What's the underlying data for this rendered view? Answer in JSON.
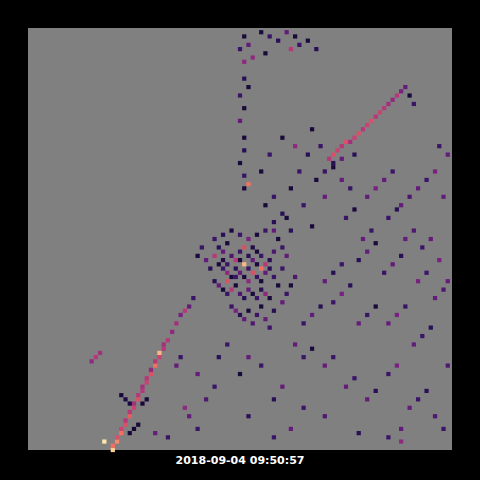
{
  "chart_data": {
    "type": "heatmap",
    "title": "2018-09-04 09:50:57",
    "xlim": [
      0,
      100
    ],
    "ylim": [
      0,
      100
    ],
    "tick_labels": false,
    "value_range": [
      0,
      1
    ],
    "cells": [
      [
        20,
        0,
        0.9
      ],
      [
        20,
        1,
        0.7
      ],
      [
        21,
        2,
        0.75
      ],
      [
        21,
        3,
        0.6
      ],
      [
        22,
        4,
        0.7
      ],
      [
        22,
        5,
        0.55
      ],
      [
        23,
        6,
        0.6
      ],
      [
        23,
        7,
        0.5
      ],
      [
        24,
        8,
        0.65
      ],
      [
        24,
        9,
        0.5
      ],
      [
        25,
        10,
        0.55
      ],
      [
        25,
        11,
        0.45
      ],
      [
        26,
        12,
        0.6
      ],
      [
        26,
        13,
        0.5
      ],
      [
        27,
        14,
        0.5
      ],
      [
        27,
        15,
        0.45
      ],
      [
        28,
        16,
        0.55
      ],
      [
        28,
        17,
        0.5
      ],
      [
        29,
        18,
        0.6
      ],
      [
        29,
        19,
        0.4
      ],
      [
        30,
        20,
        0.7
      ],
      [
        30,
        21,
        0.5
      ],
      [
        31,
        22,
        0.55
      ],
      [
        31,
        23,
        0.85
      ],
      [
        32,
        24,
        0.5
      ],
      [
        32,
        25,
        0.45
      ],
      [
        33,
        26,
        0.5
      ],
      [
        34,
        28,
        0.4
      ],
      [
        35,
        30,
        0.45
      ],
      [
        36,
        32,
        0.35
      ],
      [
        18,
        2,
        0.95
      ],
      [
        24,
        4,
        0.1
      ],
      [
        25,
        5,
        0.08
      ],
      [
        26,
        6,
        0.1
      ],
      [
        24,
        11,
        0.1
      ],
      [
        23,
        12,
        0.12
      ],
      [
        27,
        11,
        0.1
      ],
      [
        28,
        12,
        0.1
      ],
      [
        22,
        13,
        0.1
      ],
      [
        16,
        22,
        0.5
      ],
      [
        17,
        23,
        0.45
      ],
      [
        15,
        21,
        0.4
      ],
      [
        35,
        20,
        0.3
      ],
      [
        36,
        22,
        0.2
      ],
      [
        37,
        10,
        0.4
      ],
      [
        38,
        8,
        0.3
      ],
      [
        40,
        5,
        0.2
      ],
      [
        33,
        3,
        0.2
      ],
      [
        30,
        4,
        0.3
      ],
      [
        42,
        12,
        0.25
      ],
      [
        44,
        15,
        0.2
      ],
      [
        40,
        18,
        0.3
      ],
      [
        44,
        50,
        0.2
      ],
      [
        45,
        48,
        0.15
      ],
      [
        46,
        47,
        0.3
      ],
      [
        47,
        49,
        0.1
      ],
      [
        48,
        46,
        0.25
      ],
      [
        49,
        45,
        0.5
      ],
      [
        50,
        47,
        0.2
      ],
      [
        51,
        48,
        0.6
      ],
      [
        52,
        46,
        0.15
      ],
      [
        53,
        45,
        0.3
      ],
      [
        54,
        47,
        0.1
      ],
      [
        55,
        46,
        0.2
      ],
      [
        56,
        44,
        0.5
      ],
      [
        57,
        45,
        0.15
      ],
      [
        58,
        47,
        0.25
      ],
      [
        59,
        50,
        0.1
      ],
      [
        60,
        48,
        0.2
      ],
      [
        61,
        46,
        0.3
      ],
      [
        62,
        52,
        0.15
      ],
      [
        45,
        44,
        0.1
      ],
      [
        46,
        43,
        0.2
      ],
      [
        47,
        42,
        0.4
      ],
      [
        48,
        41,
        0.1
      ],
      [
        49,
        43,
        0.15
      ],
      [
        50,
        42,
        0.3
      ],
      [
        51,
        41,
        0.1
      ],
      [
        52,
        43,
        0.2
      ],
      [
        53,
        42,
        0.6
      ],
      [
        54,
        41,
        0.2
      ],
      [
        55,
        40,
        0.1
      ],
      [
        56,
        42,
        0.3
      ],
      [
        57,
        43,
        0.15
      ],
      [
        58,
        41,
        0.2
      ],
      [
        44,
        40,
        0.15
      ],
      [
        45,
        39,
        0.3
      ],
      [
        46,
        38,
        0.1
      ],
      [
        47,
        37,
        0.2
      ],
      [
        48,
        38,
        0.5
      ],
      [
        49,
        39,
        0.1
      ],
      [
        50,
        37,
        0.25
      ],
      [
        51,
        36,
        0.15
      ],
      [
        52,
        38,
        0.3
      ],
      [
        53,
        37,
        0.1
      ],
      [
        54,
        36,
        0.2
      ],
      [
        55,
        38,
        0.15
      ],
      [
        56,
        37,
        0.4
      ],
      [
        57,
        36,
        0.1
      ],
      [
        48,
        34,
        0.2
      ],
      [
        49,
        33,
        0.35
      ],
      [
        50,
        32,
        0.15
      ],
      [
        51,
        31,
        0.3
      ],
      [
        52,
        33,
        0.1
      ],
      [
        53,
        30,
        0.25
      ],
      [
        54,
        32,
        0.2
      ],
      [
        55,
        34,
        0.1
      ],
      [
        56,
        31,
        0.3
      ],
      [
        57,
        29,
        0.2
      ],
      [
        58,
        33,
        0.15
      ],
      [
        60,
        35,
        0.3
      ],
      [
        61,
        37,
        0.2
      ],
      [
        62,
        39,
        0.1
      ],
      [
        63,
        41,
        0.25
      ],
      [
        60,
        43,
        0.2
      ],
      [
        59,
        39,
        0.1
      ],
      [
        42,
        45,
        0.3
      ],
      [
        43,
        43,
        0.15
      ],
      [
        44,
        46,
        0.5
      ],
      [
        46,
        51,
        0.15
      ],
      [
        48,
        52,
        0.1
      ],
      [
        50,
        51,
        0.2
      ],
      [
        52,
        50,
        0.35
      ],
      [
        54,
        51,
        0.1
      ],
      [
        56,
        52,
        0.2
      ],
      [
        58,
        54,
        0.15
      ],
      [
        51,
        44,
        0.85
      ],
      [
        55,
        43,
        0.7
      ],
      [
        47,
        40,
        0.6
      ],
      [
        52,
        40,
        0.4
      ],
      [
        46,
        45,
        0.12
      ],
      [
        50,
        45,
        0.1
      ],
      [
        53,
        48,
        0.12
      ],
      [
        49,
        41,
        0.2
      ],
      [
        54,
        44,
        0.1
      ],
      [
        47,
        44,
        0.2
      ],
      [
        51,
        62,
        0.1
      ],
      [
        51,
        65,
        0.2
      ],
      [
        50,
        68,
        0.1
      ],
      [
        51,
        71,
        0.15
      ],
      [
        51,
        74,
        0.1
      ],
      [
        50,
        78,
        0.3
      ],
      [
        51,
        81,
        0.1
      ],
      [
        50,
        84,
        0.2
      ],
      [
        51,
        88,
        0.15
      ],
      [
        51,
        92,
        0.4
      ],
      [
        50,
        95,
        0.2
      ],
      [
        51,
        98,
        0.1
      ],
      [
        52,
        86,
        0.1
      ],
      [
        52,
        96,
        0.3
      ],
      [
        52,
        63,
        0.7
      ],
      [
        55,
        99,
        0.1
      ],
      [
        57,
        98,
        0.2
      ],
      [
        59,
        97,
        0.15
      ],
      [
        61,
        99,
        0.3
      ],
      [
        63,
        98,
        0.1
      ],
      [
        64,
        96,
        0.2
      ],
      [
        62,
        95,
        0.5
      ],
      [
        66,
        97,
        0.1
      ],
      [
        68,
        95,
        0.15
      ],
      [
        53,
        93,
        0.4
      ],
      [
        56,
        94,
        0.1
      ],
      [
        56,
        58,
        0.1
      ],
      [
        58,
        60,
        0.2
      ],
      [
        60,
        56,
        0.15
      ],
      [
        62,
        62,
        0.1
      ],
      [
        64,
        66,
        0.2
      ],
      [
        66,
        70,
        0.15
      ],
      [
        68,
        64,
        0.1
      ],
      [
        70,
        60,
        0.3
      ],
      [
        55,
        66,
        0.1
      ],
      [
        57,
        70,
        0.2
      ],
      [
        60,
        74,
        0.1
      ],
      [
        63,
        72,
        0.4
      ],
      [
        67,
        76,
        0.1
      ],
      [
        69,
        72,
        0.2
      ],
      [
        72,
        68,
        0.15
      ],
      [
        74,
        64,
        0.3
      ],
      [
        76,
        62,
        0.2
      ],
      [
        58,
        52,
        0.3
      ],
      [
        61,
        55,
        0.1
      ],
      [
        65,
        58,
        0.2
      ],
      [
        67,
        53,
        0.1
      ],
      [
        71,
        69,
        0.5
      ],
      [
        72,
        70,
        0.6
      ],
      [
        73,
        71,
        0.55
      ],
      [
        74,
        72,
        0.5
      ],
      [
        75,
        73,
        0.6
      ],
      [
        76,
        73,
        0.45
      ],
      [
        77,
        74,
        0.55
      ],
      [
        78,
        75,
        0.6
      ],
      [
        79,
        76,
        0.5
      ],
      [
        80,
        77,
        0.55
      ],
      [
        81,
        78,
        0.6
      ],
      [
        82,
        79,
        0.5
      ],
      [
        83,
        80,
        0.55
      ],
      [
        84,
        81,
        0.5
      ],
      [
        85,
        82,
        0.45
      ],
      [
        86,
        83,
        0.4
      ],
      [
        87,
        84,
        0.5
      ],
      [
        88,
        85,
        0.35
      ],
      [
        89,
        86,
        0.3
      ],
      [
        90,
        84,
        0.1
      ],
      [
        91,
        82,
        0.2
      ],
      [
        70,
        66,
        0.2
      ],
      [
        72,
        67,
        0.1
      ],
      [
        74,
        69,
        0.3
      ],
      [
        77,
        70,
        0.15
      ],
      [
        80,
        60,
        0.3
      ],
      [
        82,
        62,
        0.35
      ],
      [
        84,
        64,
        0.3
      ],
      [
        86,
        66,
        0.2
      ],
      [
        88,
        58,
        0.3
      ],
      [
        90,
        60,
        0.25
      ],
      [
        92,
        62,
        0.3
      ],
      [
        94,
        64,
        0.2
      ],
      [
        96,
        66,
        0.35
      ],
      [
        98,
        60,
        0.3
      ],
      [
        85,
        55,
        0.2
      ],
      [
        87,
        57,
        0.15
      ],
      [
        89,
        50,
        0.3
      ],
      [
        91,
        52,
        0.25
      ],
      [
        93,
        48,
        0.2
      ],
      [
        95,
        50,
        0.3
      ],
      [
        97,
        45,
        0.35
      ],
      [
        75,
        55,
        0.2
      ],
      [
        77,
        57,
        0.1
      ],
      [
        79,
        50,
        0.3
      ],
      [
        81,
        52,
        0.2
      ],
      [
        78,
        45,
        0.15
      ],
      [
        80,
        47,
        0.3
      ],
      [
        82,
        49,
        0.1
      ],
      [
        84,
        42,
        0.2
      ],
      [
        86,
        44,
        0.3
      ],
      [
        88,
        46,
        0.15
      ],
      [
        92,
        40,
        0.35
      ],
      [
        94,
        42,
        0.2
      ],
      [
        96,
        36,
        0.3
      ],
      [
        98,
        38,
        0.25
      ],
      [
        70,
        40,
        0.3
      ],
      [
        72,
        42,
        0.15
      ],
      [
        74,
        44,
        0.2
      ],
      [
        72,
        35,
        0.2
      ],
      [
        74,
        37,
        0.35
      ],
      [
        76,
        39,
        0.15
      ],
      [
        78,
        30,
        0.3
      ],
      [
        80,
        32,
        0.2
      ],
      [
        82,
        34,
        0.1
      ],
      [
        85,
        30,
        0.3
      ],
      [
        87,
        32,
        0.35
      ],
      [
        89,
        34,
        0.2
      ],
      [
        91,
        25,
        0.3
      ],
      [
        93,
        27,
        0.2
      ],
      [
        95,
        29,
        0.15
      ],
      [
        65,
        30,
        0.2
      ],
      [
        67,
        32,
        0.3
      ],
      [
        69,
        34,
        0.15
      ],
      [
        63,
        25,
        0.3
      ],
      [
        65,
        22,
        0.2
      ],
      [
        67,
        24,
        0.1
      ],
      [
        70,
        20,
        0.3
      ],
      [
        72,
        22,
        0.2
      ],
      [
        75,
        15,
        0.3
      ],
      [
        77,
        17,
        0.2
      ],
      [
        80,
        12,
        0.3
      ],
      [
        82,
        14,
        0.15
      ],
      [
        85,
        18,
        0.2
      ],
      [
        87,
        20,
        0.35
      ],
      [
        90,
        10,
        0.3
      ],
      [
        92,
        12,
        0.2
      ],
      [
        94,
        14,
        0.15
      ],
      [
        96,
        8,
        0.25
      ],
      [
        98,
        5,
        0.2
      ],
      [
        88,
        5,
        0.3
      ],
      [
        85,
        3,
        0.2
      ],
      [
        78,
        4,
        0.15
      ],
      [
        70,
        8,
        0.25
      ],
      [
        65,
        10,
        0.2
      ],
      [
        60,
        15,
        0.3
      ],
      [
        58,
        12,
        0.15
      ],
      [
        55,
        20,
        0.2
      ],
      [
        52,
        22,
        0.3
      ],
      [
        50,
        18,
        0.1
      ],
      [
        47,
        25,
        0.2
      ],
      [
        45,
        22,
        0.15
      ],
      [
        62,
        5,
        0.3
      ],
      [
        58,
        3,
        0.2
      ],
      [
        52,
        8,
        0.15
      ],
      [
        99,
        70,
        0.3
      ],
      [
        97,
        72,
        0.2
      ],
      [
        99,
        40,
        0.3
      ],
      [
        99,
        20,
        0.25
      ],
      [
        88,
        2,
        0.4
      ],
      [
        41,
        48,
        0.2
      ],
      [
        40,
        46,
        0.1
      ],
      [
        38,
        34,
        0.3
      ],
      [
        39,
        36,
        0.2
      ],
      [
        37,
        33,
        0.5
      ]
    ]
  }
}
